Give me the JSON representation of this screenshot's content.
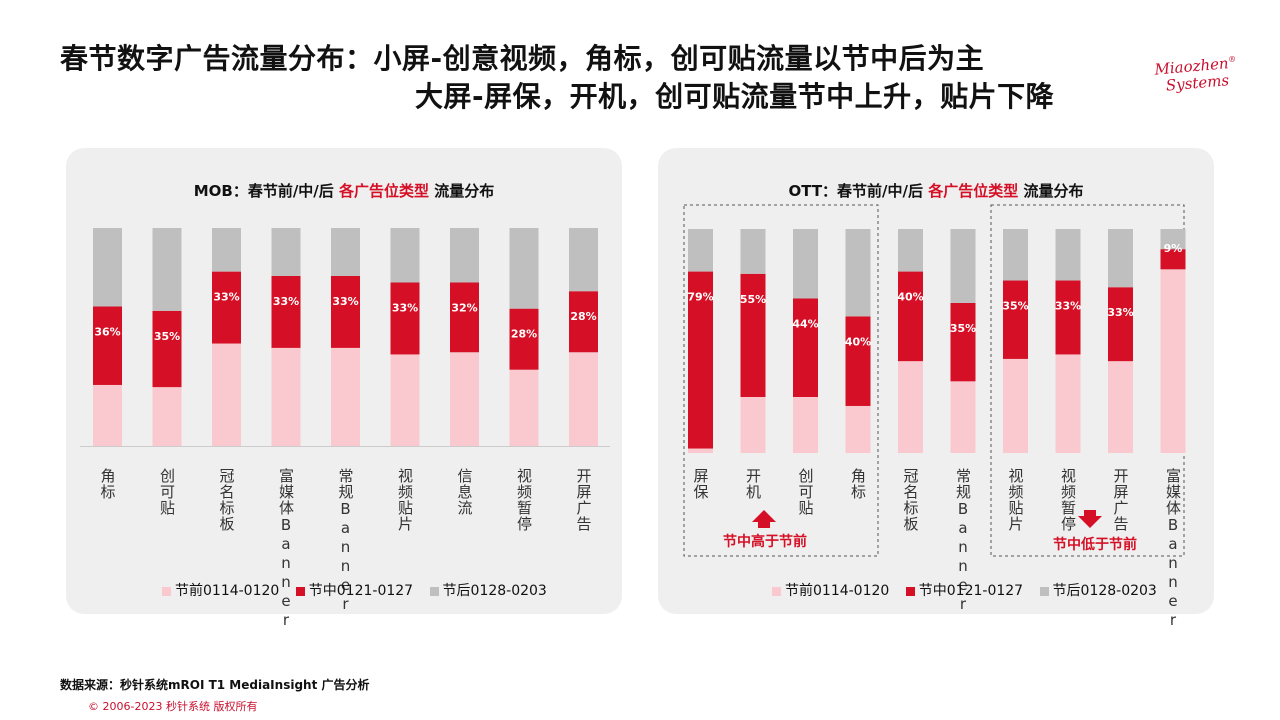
{
  "title": {
    "line1": "春节数字广告流量分布：小屏-创意视频，角标，创可贴流量以节中后为主",
    "line2": "大屏-屏保，开机，创可贴流量节中上升，贴片下降"
  },
  "logo": {
    "line1": "Miaozhen",
    "reg": "®",
    "line2": "Systems"
  },
  "mob_title": {
    "prefix": "MOB：春节前/中/后 ",
    "highlight": "各广告位类型",
    "suffix": " 流量分布"
  },
  "ott_title": {
    "prefix": "OTT：春节前/中/后 ",
    "highlight": "各广告位类型",
    "suffix": " 流量分布"
  },
  "legend": {
    "pre": "节前0114-0120",
    "mid": "节中0121-0127",
    "post": "节后0128-0203"
  },
  "colors": {
    "pre": "#f9c9cf",
    "mid": "#d50f25",
    "post": "#bfbfbf",
    "accent": "#d50f25"
  },
  "annotations": {
    "up": "节中高于节前",
    "down": "节中低于节前"
  },
  "chart_data": [
    {
      "type": "bar",
      "stacked": true,
      "normalized": true,
      "title": "MOB：春节前/中/后 各广告位类型 流量分布",
      "categories": [
        "角标",
        "创可贴",
        "冠名标板",
        "富媒体Banner",
        "常规Banner",
        "视频贴片",
        "信息流",
        "视频暂停",
        "开屏广告"
      ],
      "series": [
        {
          "name": "节前0114-0120",
          "values": [
            28,
            27,
            47,
            45,
            45,
            42,
            43,
            35,
            43
          ]
        },
        {
          "name": "节中0121-0127",
          "values": [
            36,
            35,
            33,
            33,
            33,
            33,
            32,
            28,
            28
          ]
        },
        {
          "name": "节后0128-0203",
          "values": [
            36,
            38,
            20,
            22,
            22,
            25,
            25,
            37,
            29
          ]
        }
      ],
      "data_labels": [
        "36%",
        "35%",
        "33%",
        "33%",
        "33%",
        "33%",
        "32%",
        "28%",
        "28%"
      ]
    },
    {
      "type": "bar",
      "stacked": true,
      "normalized": true,
      "title": "OTT：春节前/中/后 各广告位类型 流量分布",
      "categories": [
        "屏保",
        "开机",
        "创可贴",
        "角标",
        "冠名标板",
        "常规Banner",
        "视频贴片",
        "视频暂停",
        "开屏广告",
        "富媒体Banner"
      ],
      "series": [
        {
          "name": "节前0114-0120",
          "values": [
            2,
            25,
            25,
            21,
            41,
            32,
            42,
            44,
            41,
            82
          ]
        },
        {
          "name": "节中0121-0127",
          "values": [
            79,
            55,
            44,
            40,
            40,
            35,
            35,
            33,
            33,
            9
          ]
        },
        {
          "name": "节后0128-0203",
          "values": [
            19,
            20,
            31,
            39,
            19,
            33,
            23,
            23,
            26,
            9
          ]
        }
      ],
      "data_labels": [
        "79%",
        "55%",
        "44%",
        "40%",
        "40%",
        "35%",
        "35%",
        "33%",
        "33%",
        "9%"
      ]
    }
  ],
  "source": "数据来源：秒针系统mROI T1 MediaInsight   广告分析",
  "copyright": "© 2006-2023 秒针系统 版权所有"
}
